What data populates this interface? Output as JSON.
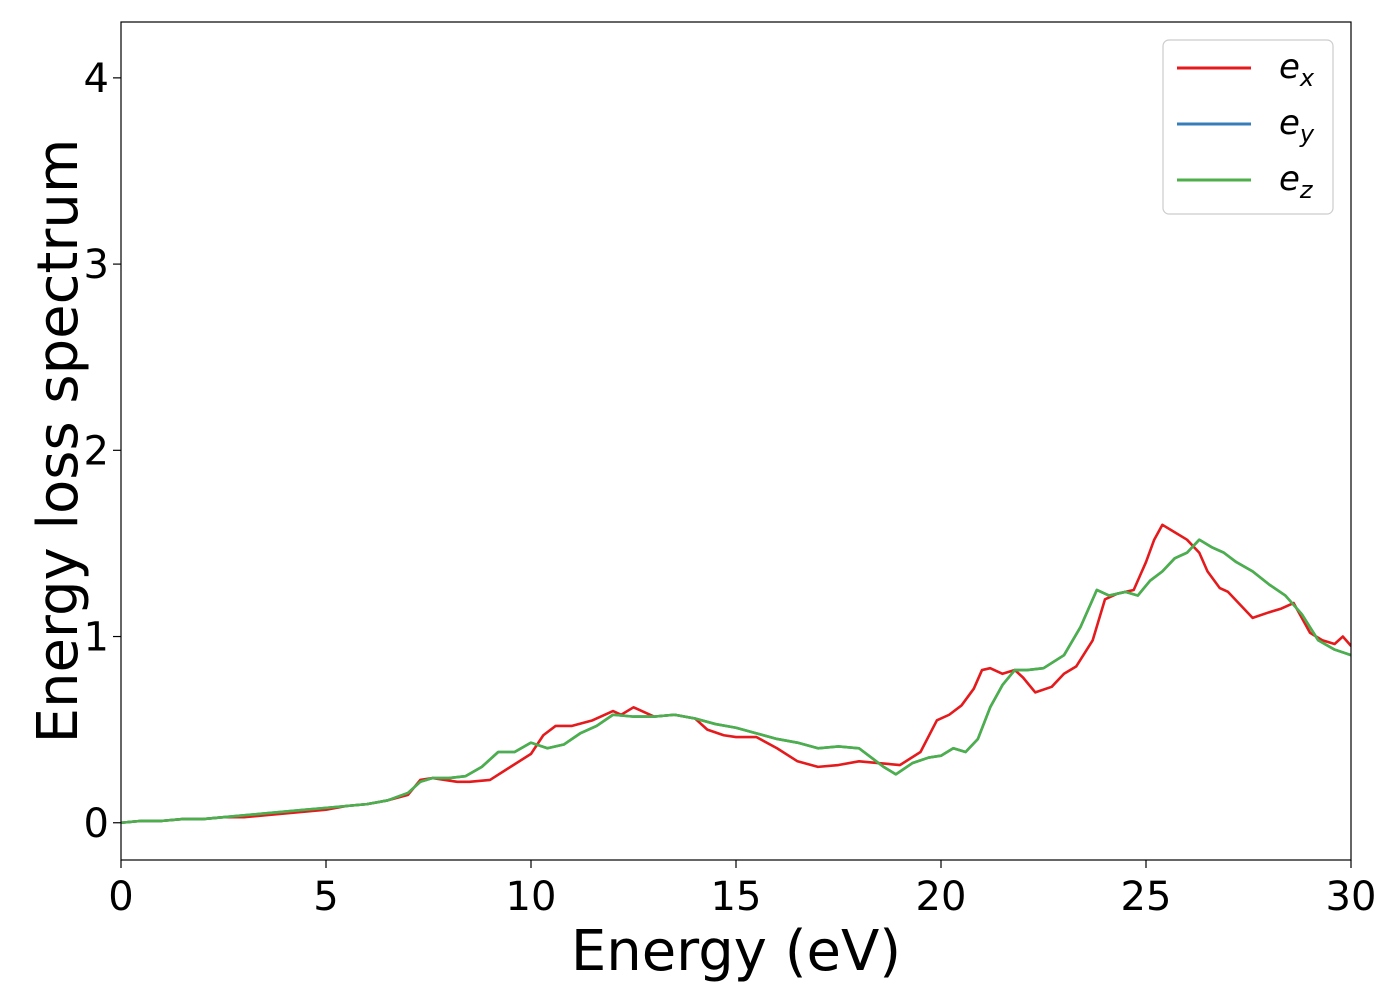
{
  "chart_data": {
    "type": "line",
    "title": "",
    "xlabel": "Energy (eV)",
    "ylabel": "Energy loss spectrum",
    "xlim": [
      0,
      30
    ],
    "ylim": [
      -0.2,
      4.3
    ],
    "xticks": [
      0,
      5,
      10,
      15,
      20,
      25,
      30
    ],
    "yticks": [
      0,
      1,
      2,
      3,
      4
    ],
    "grid": false,
    "legend_position": "top-right",
    "series": [
      {
        "name": "e_x",
        "label_base": "e",
        "label_sub": "x",
        "color": "#e41a1c",
        "x": [
          0,
          0.5,
          1,
          1.5,
          2,
          2.5,
          3,
          3.5,
          4,
          4.5,
          5,
          5.5,
          6,
          6.5,
          7,
          7.3,
          7.6,
          7.9,
          8.2,
          8.5,
          9,
          9.5,
          10,
          10.3,
          10.6,
          11,
          11.5,
          12,
          12.2,
          12.5,
          13,
          13.5,
          14,
          14.3,
          14.7,
          15,
          15.5,
          16,
          16.5,
          17,
          17.5,
          18,
          18.5,
          19,
          19.5,
          19.9,
          20.2,
          20.5,
          20.8,
          21,
          21.2,
          21.5,
          21.8,
          22,
          22.3,
          22.7,
          23,
          23.3,
          23.7,
          24,
          24.3,
          24.7,
          25,
          25.2,
          25.4,
          25.7,
          26,
          26.3,
          26.5,
          26.8,
          27,
          27.3,
          27.6,
          28,
          28.3,
          28.6,
          29,
          29.3,
          29.6,
          29.8,
          30
        ],
        "y": [
          0,
          0.01,
          0.01,
          0.02,
          0.02,
          0.03,
          0.03,
          0.04,
          0.05,
          0.06,
          0.07,
          0.09,
          0.1,
          0.12,
          0.15,
          0.23,
          0.24,
          0.23,
          0.22,
          0.22,
          0.23,
          0.3,
          0.37,
          0.47,
          0.52,
          0.52,
          0.55,
          0.6,
          0.58,
          0.62,
          0.57,
          0.58,
          0.56,
          0.5,
          0.47,
          0.46,
          0.46,
          0.4,
          0.33,
          0.3,
          0.31,
          0.33,
          0.32,
          0.31,
          0.38,
          0.55,
          0.58,
          0.63,
          0.72,
          0.82,
          0.83,
          0.8,
          0.82,
          0.78,
          0.7,
          0.73,
          0.8,
          0.84,
          0.98,
          1.2,
          1.23,
          1.25,
          1.4,
          1.52,
          1.6,
          1.56,
          1.52,
          1.45,
          1.35,
          1.26,
          1.24,
          1.17,
          1.1,
          1.13,
          1.15,
          1.18,
          1.02,
          0.98,
          0.96,
          1.0,
          0.95
        ]
      },
      {
        "name": "e_y",
        "label_base": "e",
        "label_sub": "y",
        "color": "#377eb8",
        "x": [
          0,
          0.5,
          1,
          1.5,
          2,
          2.5,
          3,
          3.5,
          4,
          4.5,
          5,
          5.5,
          6,
          6.5,
          7,
          7.3,
          7.6,
          8,
          8.4,
          8.8,
          9.2,
          9.6,
          10,
          10.4,
          10.8,
          11.2,
          11.6,
          12,
          12.5,
          13,
          13.5,
          14,
          14.5,
          15,
          15.5,
          16,
          16.5,
          17,
          17.5,
          18,
          18.3,
          18.6,
          18.9,
          19.3,
          19.7,
          20,
          20.3,
          20.6,
          20.9,
          21.2,
          21.5,
          21.8,
          22.1,
          22.5,
          23,
          23.4,
          23.8,
          24.1,
          24.5,
          24.8,
          25.1,
          25.4,
          25.7,
          26,
          26.3,
          26.6,
          26.9,
          27.2,
          27.6,
          28,
          28.4,
          28.8,
          29.2,
          29.6,
          30
        ],
        "y": [
          0,
          0.01,
          0.01,
          0.02,
          0.02,
          0.03,
          0.04,
          0.05,
          0.06,
          0.07,
          0.08,
          0.09,
          0.1,
          0.12,
          0.16,
          0.22,
          0.24,
          0.24,
          0.25,
          0.3,
          0.38,
          0.38,
          0.43,
          0.4,
          0.42,
          0.48,
          0.52,
          0.58,
          0.57,
          0.57,
          0.58,
          0.56,
          0.53,
          0.51,
          0.48,
          0.45,
          0.43,
          0.4,
          0.41,
          0.4,
          0.35,
          0.3,
          0.26,
          0.32,
          0.35,
          0.36,
          0.4,
          0.38,
          0.45,
          0.62,
          0.74,
          0.82,
          0.82,
          0.83,
          0.9,
          1.05,
          1.25,
          1.22,
          1.24,
          1.22,
          1.3,
          1.35,
          1.42,
          1.45,
          1.52,
          1.48,
          1.45,
          1.4,
          1.35,
          1.28,
          1.22,
          1.12,
          0.98,
          0.93,
          0.9
        ]
      },
      {
        "name": "e_z",
        "label_base": "e",
        "label_sub": "z",
        "color": "#4daf4a",
        "x": [
          0,
          0.5,
          1,
          1.5,
          2,
          2.5,
          3,
          3.5,
          4,
          4.5,
          5,
          5.5,
          6,
          6.5,
          7,
          7.3,
          7.6,
          8,
          8.4,
          8.8,
          9.2,
          9.6,
          10,
          10.4,
          10.8,
          11.2,
          11.6,
          12,
          12.5,
          13,
          13.5,
          14,
          14.5,
          15,
          15.5,
          16,
          16.5,
          17,
          17.5,
          18,
          18.3,
          18.6,
          18.9,
          19.3,
          19.7,
          20,
          20.3,
          20.6,
          20.9,
          21.2,
          21.5,
          21.8,
          22.1,
          22.5,
          23,
          23.4,
          23.8,
          24.1,
          24.5,
          24.8,
          25.1,
          25.4,
          25.7,
          26,
          26.3,
          26.6,
          26.9,
          27.2,
          27.6,
          28,
          28.4,
          28.8,
          29.2,
          29.6,
          30
        ],
        "y": [
          0,
          0.01,
          0.01,
          0.02,
          0.02,
          0.03,
          0.04,
          0.05,
          0.06,
          0.07,
          0.08,
          0.09,
          0.1,
          0.12,
          0.16,
          0.22,
          0.24,
          0.24,
          0.25,
          0.3,
          0.38,
          0.38,
          0.43,
          0.4,
          0.42,
          0.48,
          0.52,
          0.58,
          0.57,
          0.57,
          0.58,
          0.56,
          0.53,
          0.51,
          0.48,
          0.45,
          0.43,
          0.4,
          0.41,
          0.4,
          0.35,
          0.3,
          0.26,
          0.32,
          0.35,
          0.36,
          0.4,
          0.38,
          0.45,
          0.62,
          0.74,
          0.82,
          0.82,
          0.83,
          0.9,
          1.05,
          1.25,
          1.22,
          1.24,
          1.22,
          1.3,
          1.35,
          1.42,
          1.45,
          1.52,
          1.48,
          1.45,
          1.4,
          1.35,
          1.28,
          1.22,
          1.12,
          0.98,
          0.93,
          0.9
        ]
      }
    ]
  }
}
